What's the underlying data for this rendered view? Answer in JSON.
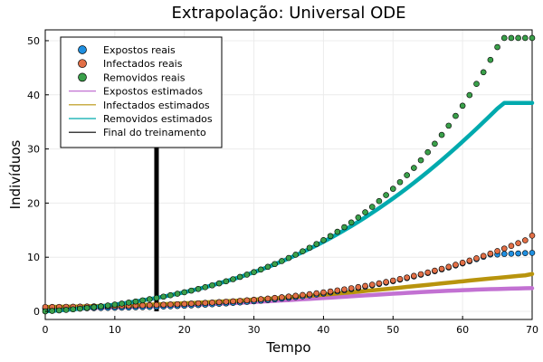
{
  "chart_data": {
    "type": "scatter",
    "title": "Extrapolação: Universal ODE",
    "xlabel": "Tempo",
    "ylabel": "Indivíduos",
    "xlim": [
      0,
      70
    ],
    "ylim": [
      -1.5,
      52
    ],
    "xticks": [
      0,
      10,
      20,
      30,
      40,
      50,
      60,
      70
    ],
    "yticks": [
      0,
      10,
      20,
      30,
      40,
      50
    ],
    "grid": true,
    "legend_position": "top-left",
    "training_end_x": 16,
    "x": [
      0,
      1,
      2,
      3,
      4,
      5,
      6,
      7,
      8,
      9,
      10,
      11,
      12,
      13,
      14,
      15,
      16,
      17,
      18,
      19,
      20,
      21,
      22,
      23,
      24,
      25,
      26,
      27,
      28,
      29,
      30,
      31,
      32,
      33,
      34,
      35,
      36,
      37,
      38,
      39,
      40,
      41,
      42,
      43,
      44,
      45,
      46,
      47,
      48,
      49,
      50,
      51,
      52,
      53,
      54,
      55,
      56,
      57,
      58,
      59,
      60,
      61,
      62,
      63,
      64,
      65,
      66,
      67,
      68,
      69,
      70
    ],
    "series": [
      {
        "name": "Expostos reais",
        "kind": "points",
        "color": "#1f8fe0",
        "values": [
          0.5,
          0.51,
          0.52,
          0.53,
          0.55,
          0.56,
          0.58,
          0.6,
          0.62,
          0.64,
          0.66,
          0.68,
          0.71,
          0.74,
          0.77,
          0.81,
          0.85,
          0.89,
          0.94,
          0.99,
          1.05,
          1.11,
          1.17,
          1.24,
          1.31,
          1.39,
          1.47,
          1.56,
          1.65,
          1.75,
          1.86,
          1.97,
          2.09,
          2.22,
          2.35,
          2.49,
          2.64,
          2.8,
          2.96,
          3.13,
          3.31,
          3.5,
          3.69,
          3.9,
          4.11,
          4.33,
          4.56,
          4.8,
          5.05,
          5.31,
          5.58,
          5.86,
          6.15,
          6.45,
          6.76,
          7.08,
          7.41,
          7.76,
          8.11,
          8.48,
          8.86,
          9.25,
          9.65,
          10.07,
          10.5,
          10.5,
          10.6,
          10.65,
          10.7,
          10.75,
          10.8
        ]
      },
      {
        "name": "Infectados reais",
        "kind": "points",
        "color": "#e26f46",
        "values": [
          0.8,
          0.81,
          0.82,
          0.84,
          0.85,
          0.87,
          0.89,
          0.91,
          0.93,
          0.95,
          0.98,
          1.0,
          1.03,
          1.07,
          1.1,
          1.14,
          1.18,
          1.22,
          1.27,
          1.32,
          1.37,
          1.43,
          1.49,
          1.56,
          1.63,
          1.7,
          1.78,
          1.86,
          1.95,
          2.04,
          2.14,
          2.25,
          2.36,
          2.48,
          2.6,
          2.74,
          2.87,
          3.02,
          3.17,
          3.34,
          3.5,
          3.68,
          3.87,
          4.06,
          4.27,
          4.48,
          4.7,
          4.93,
          5.18,
          5.43,
          5.69,
          5.97,
          6.25,
          6.55,
          6.86,
          7.18,
          7.52,
          7.86,
          8.22,
          8.6,
          8.98,
          9.38,
          9.8,
          10.23,
          10.67,
          11.13,
          11.6,
          12.09,
          12.6,
          13.12,
          14.0
        ]
      },
      {
        "name": "Removidos reais",
        "kind": "points",
        "color": "#3aa04a",
        "values": [
          0.0,
          0.08,
          0.17,
          0.27,
          0.38,
          0.5,
          0.63,
          0.77,
          0.92,
          1.08,
          1.25,
          1.43,
          1.62,
          1.82,
          2.03,
          2.25,
          2.48,
          2.72,
          2.98,
          3.25,
          3.53,
          3.83,
          4.14,
          4.47,
          4.81,
          5.17,
          5.55,
          5.94,
          6.36,
          6.79,
          7.24,
          7.72,
          8.22,
          8.74,
          9.29,
          9.86,
          10.46,
          11.09,
          11.75,
          12.44,
          13.16,
          13.92,
          14.71,
          15.55,
          16.42,
          17.34,
          18.3,
          19.31,
          20.37,
          21.48,
          22.64,
          23.87,
          25.15,
          26.5,
          27.92,
          29.4,
          30.96,
          32.59,
          34.3,
          36.1,
          37.98,
          39.95,
          42.02,
          44.18,
          46.45,
          48.82,
          50.5,
          50.5,
          50.5,
          50.5,
          50.5
        ]
      },
      {
        "name": "Expostos estimados",
        "kind": "line",
        "color": "#c271d2",
        "values": [
          0.5,
          0.52,
          0.54,
          0.56,
          0.58,
          0.6,
          0.62,
          0.65,
          0.68,
          0.71,
          0.74,
          0.77,
          0.8,
          0.84,
          0.88,
          0.92,
          0.96,
          1.0,
          1.05,
          1.1,
          1.15,
          1.2,
          1.25,
          1.3,
          1.36,
          1.42,
          1.48,
          1.54,
          1.6,
          1.66,
          1.73,
          1.8,
          1.87,
          1.94,
          2.01,
          2.08,
          2.15,
          2.23,
          2.31,
          2.38,
          2.46,
          2.54,
          2.62,
          2.7,
          2.78,
          2.86,
          2.94,
          3.02,
          3.1,
          3.18,
          3.26,
          3.33,
          3.41,
          3.48,
          3.55,
          3.62,
          3.68,
          3.74,
          3.8,
          3.86,
          3.91,
          3.96,
          4.01,
          4.05,
          4.09,
          4.13,
          4.17,
          4.2,
          4.23,
          4.26,
          4.28
        ]
      },
      {
        "name": "Infectados estimados",
        "kind": "line",
        "color": "#b8940d",
        "values": [
          0.8,
          0.82,
          0.84,
          0.86,
          0.88,
          0.9,
          0.93,
          0.96,
          0.99,
          1.02,
          1.05,
          1.08,
          1.12,
          1.16,
          1.2,
          1.24,
          1.28,
          1.33,
          1.38,
          1.43,
          1.48,
          1.54,
          1.6,
          1.66,
          1.72,
          1.79,
          1.86,
          1.93,
          2.0,
          2.08,
          2.16,
          2.24,
          2.32,
          2.41,
          2.5,
          2.59,
          2.68,
          2.78,
          2.88,
          2.98,
          3.08,
          3.19,
          3.3,
          3.41,
          3.52,
          3.64,
          3.76,
          3.88,
          4.0,
          4.12,
          4.25,
          4.38,
          4.51,
          4.64,
          4.77,
          4.9,
          5.03,
          5.16,
          5.29,
          5.42,
          5.55,
          5.68,
          5.81,
          5.94,
          6.06,
          6.18,
          6.3,
          6.42,
          6.54,
          6.65,
          6.9
        ]
      },
      {
        "name": "Removidos estimados",
        "kind": "line",
        "color": "#00aaae",
        "values": [
          0.0,
          0.08,
          0.17,
          0.27,
          0.38,
          0.5,
          0.63,
          0.77,
          0.92,
          1.08,
          1.25,
          1.43,
          1.62,
          1.82,
          2.03,
          2.25,
          2.48,
          2.72,
          2.98,
          3.25,
          3.53,
          3.83,
          4.14,
          4.47,
          4.81,
          5.17,
          5.55,
          5.94,
          6.35,
          6.78,
          7.23,
          7.7,
          8.19,
          8.7,
          9.23,
          9.78,
          10.35,
          10.94,
          11.56,
          12.2,
          12.86,
          13.55,
          14.26,
          15.0,
          15.76,
          16.55,
          17.36,
          18.2,
          19.06,
          19.95,
          20.86,
          21.8,
          22.76,
          23.75,
          24.76,
          25.8,
          26.86,
          27.95,
          29.06,
          30.2,
          31.36,
          32.54,
          33.74,
          34.96,
          36.2,
          37.46,
          38.5,
          38.5,
          38.5,
          38.5,
          38.5
        ]
      },
      {
        "name": "Final do treinamento",
        "kind": "vline",
        "color": "#000000"
      }
    ]
  }
}
